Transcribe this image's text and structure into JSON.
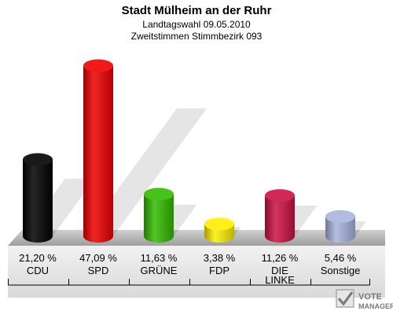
{
  "chart_data": {
    "type": "bar",
    "title": "Stadt Mülheim an der Ruhr",
    "subtitle_1": "Landtagswahl 09.05.2010",
    "subtitle_2": "Zweitstimmen Stimmbezirk 093",
    "categories": [
      "CDU",
      "SPD",
      "GRÜNE",
      "FDP",
      "DIE LINKE",
      "Sonstige"
    ],
    "category_lines": [
      [
        "CDU"
      ],
      [
        "SPD"
      ],
      [
        "GRÜNE"
      ],
      [
        "FDP"
      ],
      [
        "DIE",
        "LINKE"
      ],
      [
        "Sonstige"
      ]
    ],
    "values": [
      21.2,
      47.09,
      11.63,
      3.38,
      11.26,
      5.46
    ],
    "value_labels": [
      "21,20 %",
      "47,09 %",
      "11,63 %",
      "3,38 %",
      "11,26 %",
      "5,46 %"
    ],
    "colors": [
      "#000000",
      "#ee0000",
      "#33bb00",
      "#ffee00",
      "#cc1144",
      "#a8b4dd"
    ],
    "ylim": [
      0,
      50
    ],
    "grid": false,
    "legend": "none"
  },
  "watermark": {
    "text_1": "VOTE",
    "text_2": "MANAGER"
  }
}
